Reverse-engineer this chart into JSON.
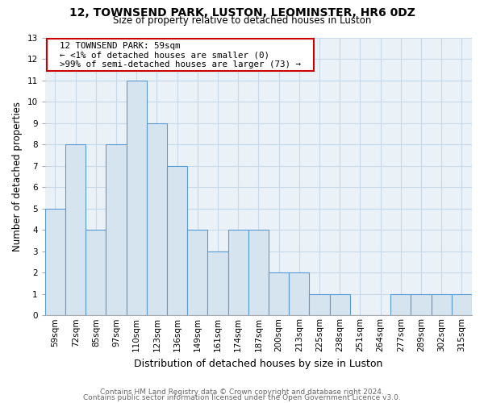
{
  "title": "12, TOWNSEND PARK, LUSTON, LEOMINSTER, HR6 0DZ",
  "subtitle": "Size of property relative to detached houses in Luston",
  "xlabel": "Distribution of detached houses by size in Luston",
  "ylabel": "Number of detached properties",
  "categories": [
    "59sqm",
    "72sqm",
    "85sqm",
    "97sqm",
    "110sqm",
    "123sqm",
    "136sqm",
    "149sqm",
    "161sqm",
    "174sqm",
    "187sqm",
    "200sqm",
    "213sqm",
    "225sqm",
    "238sqm",
    "251sqm",
    "264sqm",
    "277sqm",
    "289sqm",
    "302sqm",
    "315sqm"
  ],
  "values": [
    5,
    8,
    4,
    8,
    11,
    9,
    7,
    4,
    3,
    4,
    4,
    2,
    2,
    1,
    1,
    0,
    0,
    1,
    1,
    1,
    1
  ],
  "bar_facecolor": "#d6e4f0",
  "bar_edgecolor": "#5b9bd5",
  "bar_linewidth": 0.8,
  "grid_color": "#c8d8e8",
  "bg_color": "#eaf2f8",
  "ylim": [
    0,
    13
  ],
  "yticks": [
    0,
    1,
    2,
    3,
    4,
    5,
    6,
    7,
    8,
    9,
    10,
    11,
    12,
    13
  ],
  "annotation_title": "12 TOWNSEND PARK: 59sqm",
  "annotation_line1": "← <1% of detached houses are smaller (0)",
  "annotation_line2": ">99% of semi-detached houses are larger (73) →",
  "annotation_box_color": "#ffffff",
  "annotation_box_edge": "#cc0000",
  "footer1": "Contains HM Land Registry data © Crown copyright and database right 2024.",
  "footer2": "Contains public sector information licensed under the Open Government Licence v3.0.",
  "title_fontsize": 10,
  "subtitle_fontsize": 8.5,
  "xlabel_fontsize": 9,
  "ylabel_fontsize": 8.5,
  "tick_fontsize": 7.5,
  "footer_fontsize": 6.5,
  "annot_fontsize": 7.8
}
